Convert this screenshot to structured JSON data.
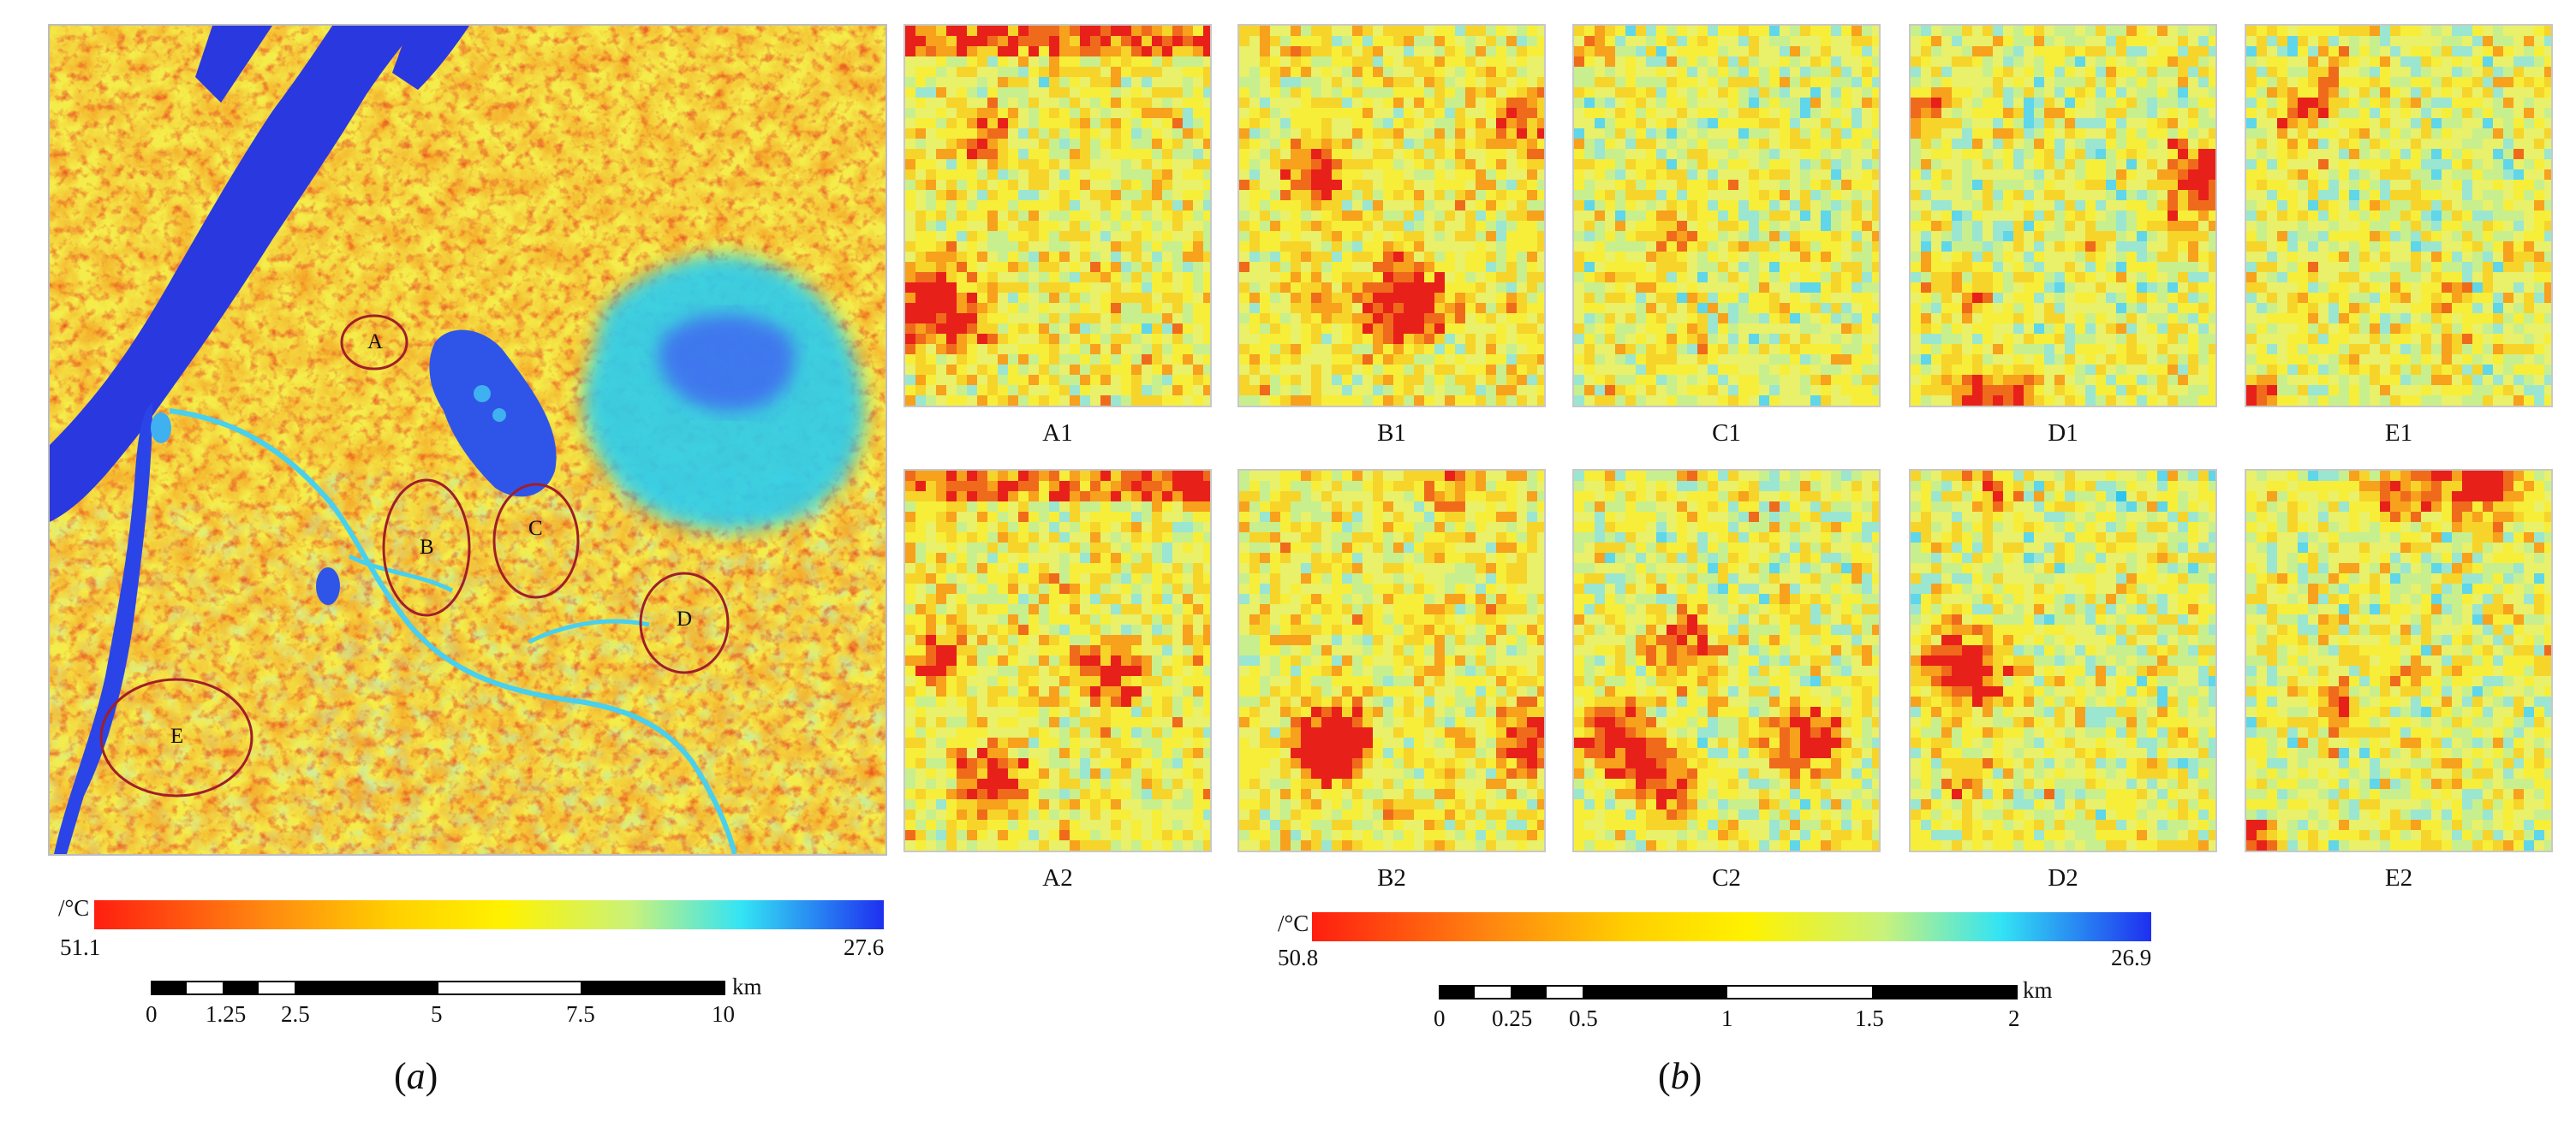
{
  "panel_a": {
    "caption": "(a)",
    "caption_letter": "a",
    "markers": [
      {
        "id": "A",
        "label": "A"
      },
      {
        "id": "B",
        "label": "B"
      },
      {
        "id": "C",
        "label": "C"
      },
      {
        "id": "D",
        "label": "D"
      },
      {
        "id": "E",
        "label": "E"
      }
    ],
    "colorbar": {
      "unit": "/°C",
      "max_label": "51.1",
      "min_label": "27.6"
    },
    "scale": {
      "unit": "km",
      "ticks": [
        "0",
        "1.25",
        "2.5",
        "5",
        "7.5",
        "10"
      ]
    }
  },
  "panel_b": {
    "caption": "(b)",
    "caption_letter": "b",
    "tiles_row1": [
      {
        "label": "A1",
        "seed": 11
      },
      {
        "label": "B1",
        "seed": 23
      },
      {
        "label": "C1",
        "seed": 37
      },
      {
        "label": "D1",
        "seed": 41
      },
      {
        "label": "E1",
        "seed": 53
      }
    ],
    "tiles_row2": [
      {
        "label": "A2",
        "seed": 61
      },
      {
        "label": "B2",
        "seed": 71
      },
      {
        "label": "C2",
        "seed": 83
      },
      {
        "label": "D2",
        "seed": 97
      },
      {
        "label": "E2",
        "seed": 103
      }
    ],
    "colorbar": {
      "unit": "/°C",
      "max_label": "50.8",
      "min_label": "26.9"
    },
    "scale": {
      "unit": "km",
      "ticks": [
        "0",
        "0.25",
        "0.5",
        "1",
        "1.5",
        "2"
      ]
    }
  },
  "colors": {
    "hot": "#e8201a",
    "warm": "#f7a11c",
    "mid": "#f7ee3a",
    "cool": "#9be6d0",
    "cyan": "#1ec8f2",
    "cold": "#1e2fe0",
    "river": "#2a44e8",
    "lake": "#3f6ff0",
    "outline": "#a01e2a"
  }
}
